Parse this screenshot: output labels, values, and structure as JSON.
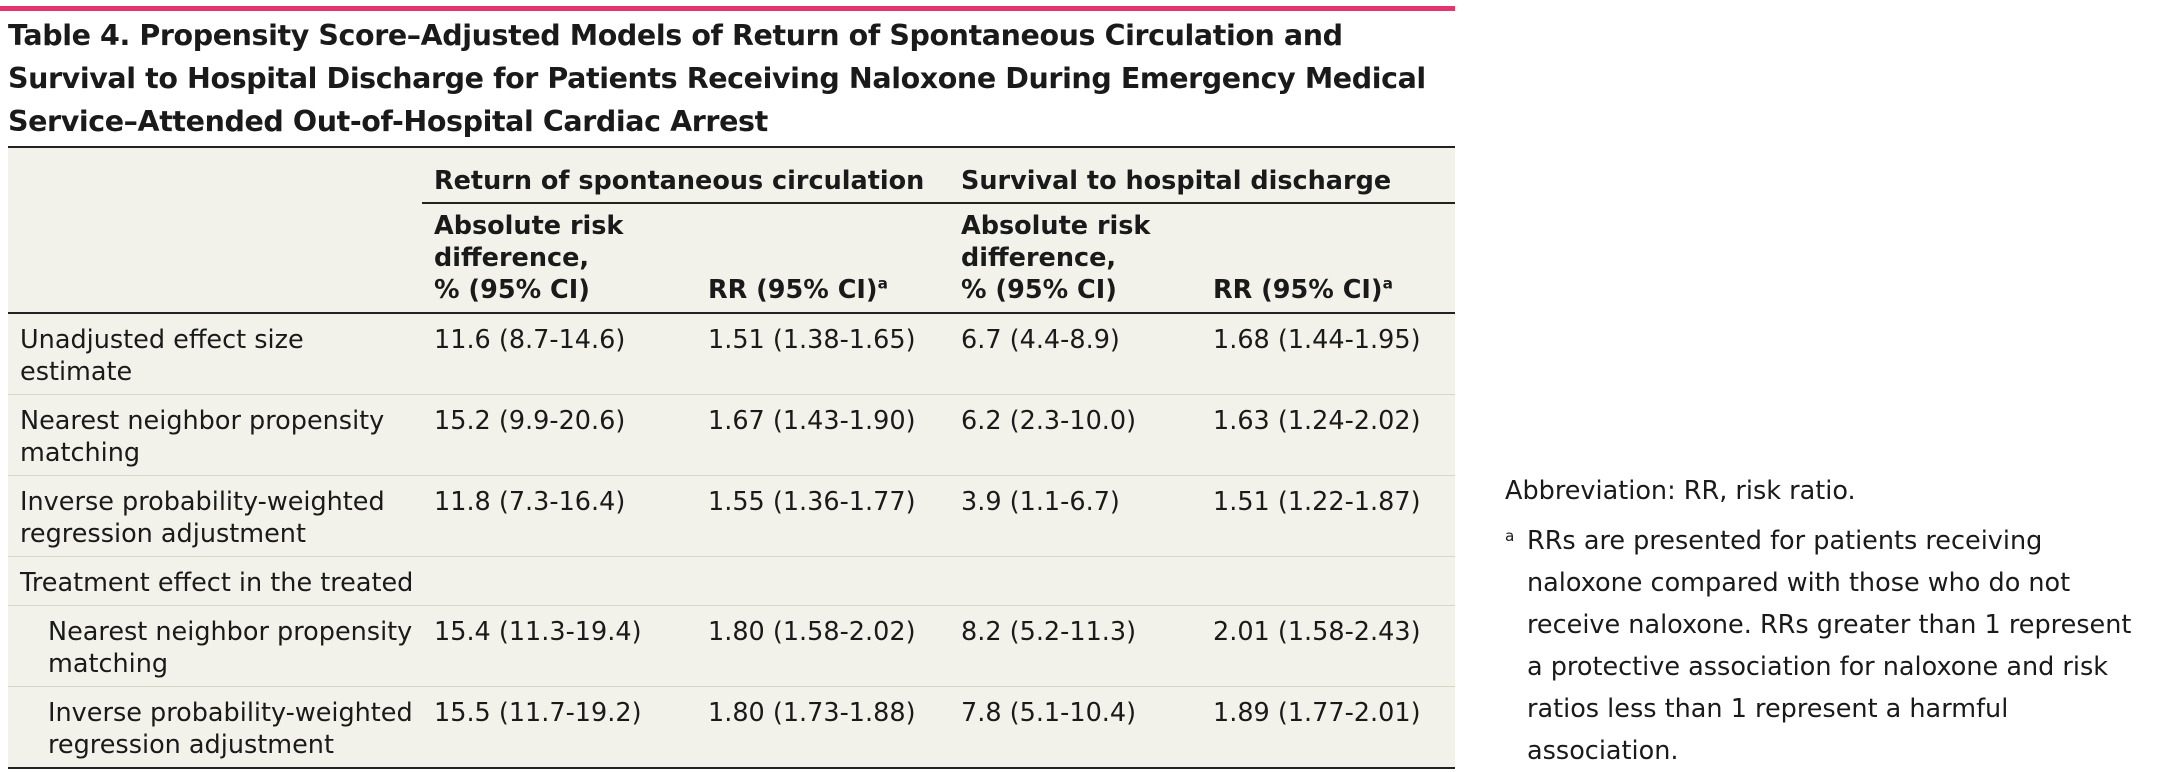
{
  "title": "Table 4. Propensity Score–Adjusted Models of Return of Spontaneous Circulation and Survival to Hospital Discharge for Patients Receiving Naloxone During Emergency Medical Service–Attended Out-of-Hospital Cardiac Arrest",
  "header": {
    "group1": "Return of spontaneous circulation",
    "group2": "Survival to hospital discharge",
    "col_ard_line1": "Absolute risk",
    "col_ard_line2": "difference,",
    "col_ard_line3": "% (95% CI)",
    "col_rr": "RR (95% CI)",
    "footnote_mark": "a"
  },
  "rows": [
    {
      "label_line1": "Unadjusted effect size estimate",
      "label_line2": "",
      "rosc_ard": "11.6 (8.7-14.6)",
      "rosc_rr": "1.51 (1.38-1.65)",
      "surv_ard": "6.7 (4.4-8.9)",
      "surv_rr": "1.68 (1.44-1.95)"
    },
    {
      "label_line1": "Nearest neighbor propensity",
      "label_line2": "matching",
      "rosc_ard": "15.2 (9.9-20.6)",
      "rosc_rr": "1.67 (1.43-1.90)",
      "surv_ard": "6.2 (2.3-10.0)",
      "surv_rr": "1.63 (1.24-2.02)"
    },
    {
      "label_line1": "Inverse probability-weighted",
      "label_line2": "regression adjustment",
      "rosc_ard": "11.8 (7.3-16.4)",
      "rosc_rr": "1.55 (1.36-1.77)",
      "surv_ard": "3.9 (1.1-6.7)",
      "surv_rr": "1.51 (1.22-1.87)"
    },
    {
      "label_line1": "Treatment effect in the treated",
      "label_line2": "",
      "rosc_ard": "",
      "rosc_rr": "",
      "surv_ard": "",
      "surv_rr": ""
    },
    {
      "label_line1": "Nearest neighbor propensity",
      "label_line2": "matching",
      "rosc_ard": "15.4 (11.3-19.4)",
      "rosc_rr": "1.80 (1.58-2.02)",
      "surv_ard": "8.2 (5.2-11.3)",
      "surv_rr": "2.01 (1.58-2.43)"
    },
    {
      "label_line1": "Inverse probability-weighted",
      "label_line2": "regression adjustment",
      "rosc_ard": "15.5 (11.7-19.2)",
      "rosc_rr": "1.80 (1.73-1.88)",
      "surv_ard": "7.8 (5.1-10.4)",
      "surv_rr": "1.89 (1.77-2.01)"
    }
  ],
  "notes": {
    "abbreviation": "Abbreviation: RR, risk ratio.",
    "mark": "a",
    "footnote_a": "RRs are presented for patients receiving naloxone compared with those who do not receive naloxone. RRs greater than 1 represent a protective association for naloxone and risk ratios less than 1 represent a harmful association."
  },
  "colors": {
    "accent": "#e4356f",
    "table_bg": "#f3f2ea"
  }
}
